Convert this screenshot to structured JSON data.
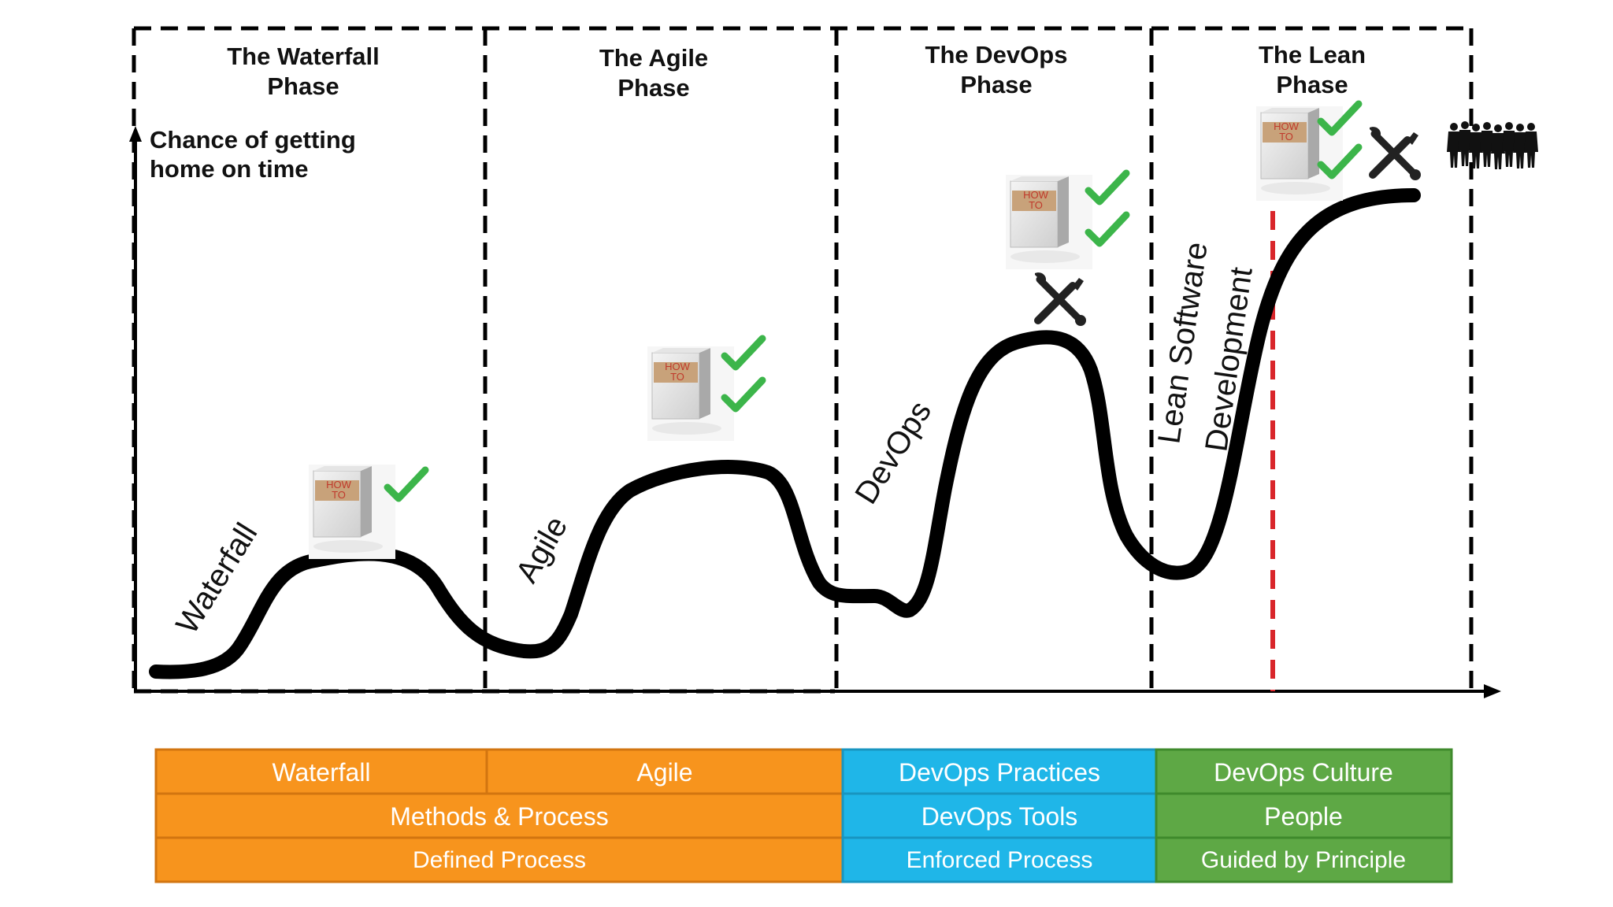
{
  "phases": [
    {
      "title_line1": "The Waterfall",
      "title_line2": "Phase"
    },
    {
      "title_line1": "The Agile",
      "title_line2": "Phase"
    },
    {
      "title_line1": "The DevOps",
      "title_line2": "Phase"
    },
    {
      "title_line1": "The Lean",
      "title_line2": "Phase"
    }
  ],
  "y_axis": {
    "line1": "Chance of getting",
    "line2": "home on time"
  },
  "curve_labels": {
    "waterfall": "Waterfall",
    "agile": "Agile",
    "devops": "DevOps",
    "lean_line1": "Lean Software",
    "lean_line2": "Development"
  },
  "book": {
    "line1": "HOW",
    "line2": "TO"
  },
  "icons": {
    "book": "how-to-book-icon",
    "check": "green-checkmark-icon",
    "tools": "wrench-screwdriver-icon",
    "people": "people-group-icon"
  },
  "table": {
    "row1": [
      "Waterfall",
      "Agile",
      "DevOps Practices",
      "DevOps Culture"
    ],
    "row2": [
      "Methods & Process",
      "DevOps Tools",
      "People"
    ],
    "row3": [
      "Defined Process",
      "Enforced Process",
      "Guided by Principle"
    ]
  },
  "colors": {
    "orange": "#f7941d",
    "blue": "#1fb6e8",
    "green": "#5ea845",
    "check_green": "#3cb54a",
    "red_line": "#d9262b",
    "curve": "#000000"
  }
}
